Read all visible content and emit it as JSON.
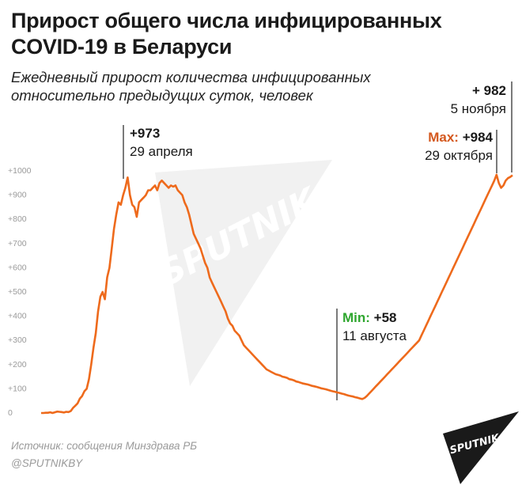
{
  "header": {
    "title": "Прирост общего числа инфицированных COVID-19 в Беларуси",
    "subtitle": "Ежедневный прирост количества инфицированных относительно предыдущих суток, человек"
  },
  "annotations": {
    "peak": {
      "value": "+973",
      "date": "29 апреля"
    },
    "min": {
      "label": "Min:",
      "value": "+58",
      "date": "11 августа"
    },
    "max": {
      "label": "Max:",
      "value": "+984",
      "date": "29 октября"
    },
    "last": {
      "value": "+ 982",
      "date": "5 ноября"
    }
  },
  "footer": {
    "source": "Источник: сообщения Минздрава РБ",
    "handle": "@SPUTNIKBY"
  },
  "watermark": {
    "text": "SPUTNIK"
  },
  "logo": {
    "text": "SPUTNIK"
  },
  "colors": {
    "line": "#ee6a1c",
    "max_label": "#d4581e",
    "min_label": "#2ea62e",
    "axis_text": "#9a9a9a",
    "logo_bg": "#1a1a1a"
  },
  "chart_data": {
    "type": "line",
    "title": "Прирост общего числа инфицированных COVID-19 в Беларуси",
    "subtitle": "Ежедневный прирост количества инфицированных относительно предыдущих суток, человек",
    "x_range": [
      "март",
      "5 ноября"
    ],
    "ylim": [
      0,
      1000
    ],
    "yticks": [
      0,
      100,
      200,
      300,
      400,
      500,
      600,
      700,
      800,
      900,
      1000
    ],
    "ytick_labels": [
      "0",
      "+100",
      "+200",
      "+300",
      "+400",
      "+500",
      "+600",
      "+700",
      "+800",
      "+900",
      "+1000"
    ],
    "grid": false,
    "series": [
      {
        "values": [
          0,
          0,
          1,
          1,
          3,
          0,
          3,
          6,
          5,
          4,
          2,
          5,
          4,
          8,
          21,
          30,
          40,
          59,
          70,
          90,
          100,
          140,
          200,
          270,
          330,
          420,
          480,
          500,
          470,
          560,
          600,
          680,
          760,
          820,
          870,
          860,
          900,
          930,
          973,
          900,
          860,
          850,
          810,
          870,
          880,
          890,
          900,
          920,
          920,
          930,
          940,
          920,
          950,
          960,
          950,
          940,
          930,
          940,
          935,
          940,
          920,
          910,
          900,
          870,
          850,
          820,
          780,
          740,
          720,
          700,
          680,
          650,
          620,
          600,
          560,
          540,
          520,
          500,
          480,
          460,
          440,
          420,
          390,
          370,
          360,
          340,
          330,
          320,
          300,
          280,
          270,
          260,
          250,
          240,
          230,
          220,
          210,
          200,
          190,
          180,
          175,
          170,
          165,
          160,
          158,
          155,
          150,
          148,
          145,
          140,
          138,
          135,
          130,
          128,
          125,
          122,
          120,
          118,
          115,
          112,
          110,
          108,
          105,
          102,
          100,
          98,
          95,
          92,
          90,
          88,
          85,
          83,
          80,
          78,
          75,
          72,
          70,
          68,
          65,
          63,
          60,
          58,
          62,
          70,
          80,
          90,
          100,
          110,
          120,
          130,
          140,
          150,
          160,
          170,
          180,
          190,
          200,
          210,
          220,
          230,
          240,
          250,
          260,
          270,
          280,
          290,
          300,
          320,
          340,
          360,
          380,
          400,
          420,
          440,
          460,
          480,
          500,
          520,
          540,
          560,
          580,
          600,
          620,
          640,
          660,
          680,
          700,
          720,
          740,
          760,
          780,
          800,
          820,
          840,
          860,
          880,
          900,
          920,
          940,
          960,
          984,
          950,
          930,
          940,
          960,
          970,
          975,
          982
        ]
      }
    ]
  }
}
